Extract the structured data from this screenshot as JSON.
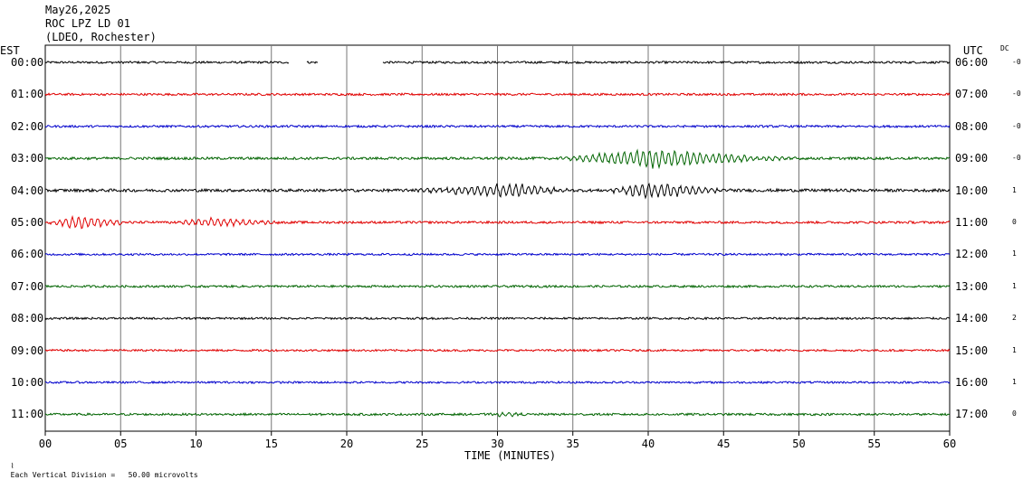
{
  "header": {
    "date": "May26,2025",
    "station": "ROC LPZ LD 01",
    "network": "(LDEO, Rochester)"
  },
  "left_zone_label": "EST",
  "right_zone_label": "UTC",
  "dc_label": "DC",
  "xlabel": "TIME (MINUTES)",
  "scale_note": "Each Vertical Division =   50.00 microvolts",
  "chart_data": {
    "type": "line",
    "title": "ROC LPZ LD 01",
    "xlabel": "TIME (MINUTES)",
    "xlim": [
      0,
      60
    ],
    "x_ticks": [
      "00",
      "05",
      "10",
      "15",
      "20",
      "25",
      "30",
      "35",
      "40",
      "45",
      "50",
      "55",
      "60"
    ],
    "grid": true,
    "colors": [
      "#000000",
      "#e00000",
      "#0000cc",
      "#006400"
    ],
    "rows": [
      {
        "est": "00:00",
        "utc": "06:00",
        "dc": "-0",
        "color": "#000000",
        "amplitude": 1.2,
        "gaps": [
          [
            16.2,
            17.3
          ],
          [
            18.1,
            22.4
          ]
        ],
        "events": []
      },
      {
        "est": "01:00",
        "utc": "07:00",
        "dc": "-0",
        "color": "#e00000",
        "amplitude": 1.2,
        "gaps": [],
        "events": []
      },
      {
        "est": "02:00",
        "utc": "08:00",
        "dc": "-0",
        "color": "#0000cc",
        "amplitude": 1.2,
        "gaps": [],
        "events": []
      },
      {
        "est": "03:00",
        "utc": "09:00",
        "dc": "-0",
        "color": "#006400",
        "amplitude": 1.4,
        "gaps": [],
        "events": [
          {
            "start": 34,
            "peak": 40,
            "end": 50,
            "amp": 11
          }
        ]
      },
      {
        "est": "04:00",
        "utc": "10:00",
        "dc": "1",
        "color": "#000000",
        "amplitude": 1.6,
        "gaps": [],
        "events": [
          {
            "start": 24,
            "peak": 31,
            "end": 35,
            "amp": 8
          },
          {
            "start": 37,
            "peak": 40,
            "end": 46,
            "amp": 9
          }
        ]
      },
      {
        "est": "05:00",
        "utc": "11:00",
        "dc": "0",
        "color": "#e00000",
        "amplitude": 1.3,
        "gaps": [],
        "events": [
          {
            "start": 0,
            "peak": 2,
            "end": 6,
            "amp": 8
          },
          {
            "start": 8,
            "peak": 11,
            "end": 16,
            "amp": 5
          }
        ]
      },
      {
        "est": "06:00",
        "utc": "12:00",
        "dc": "1",
        "color": "#0000cc",
        "amplitude": 1.1,
        "gaps": [],
        "events": []
      },
      {
        "est": "07:00",
        "utc": "13:00",
        "dc": "1",
        "color": "#006400",
        "amplitude": 1.2,
        "gaps": [],
        "events": []
      },
      {
        "est": "08:00",
        "utc": "14:00",
        "dc": "2",
        "color": "#000000",
        "amplitude": 1.1,
        "gaps": [],
        "events": []
      },
      {
        "est": "09:00",
        "utc": "15:00",
        "dc": "1",
        "color": "#e00000",
        "amplitude": 1.1,
        "gaps": [],
        "events": []
      },
      {
        "est": "10:00",
        "utc": "16:00",
        "dc": "1",
        "color": "#0000cc",
        "amplitude": 1.1,
        "gaps": [],
        "events": []
      },
      {
        "est": "11:00",
        "utc": "17:00",
        "dc": "0",
        "color": "#006400",
        "amplitude": 1.2,
        "gaps": [],
        "events": [
          {
            "start": 29,
            "peak": 30.5,
            "end": 32,
            "amp": 3
          }
        ]
      }
    ]
  }
}
